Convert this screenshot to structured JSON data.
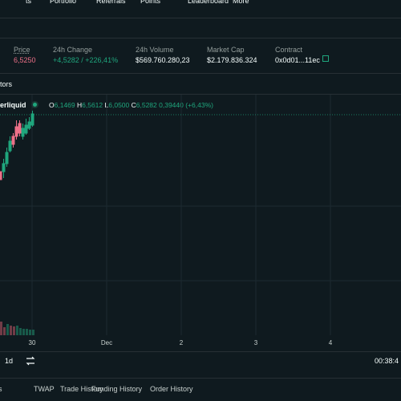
{
  "nav": {
    "items": [
      "ts",
      "Portfolio",
      "Referrals",
      "Points",
      "Leaderboard",
      "More"
    ]
  },
  "stats": [
    {
      "label": "Price",
      "value": "6,5250"
    },
    {
      "label": "24h Change",
      "value": "+4,5282 / +226,41%"
    },
    {
      "label": "24h Volume",
      "value": "$569.760.280,23"
    },
    {
      "label": "Market Cap",
      "value": "$2.179.836.324"
    },
    {
      "label": "Contract",
      "value": "0x0d01...11ec"
    }
  ],
  "toolbar": {
    "indicators": "tors"
  },
  "legend": {
    "name": "erliquid",
    "open_label": "O",
    "open": "6,1469",
    "high_label": "H",
    "high": "6,5612",
    "low_label": "L",
    "low": "6,0500",
    "close_label": "C",
    "close": "6,5282",
    "change": "0,39440 (+6,43%)"
  },
  "x_axis": [
    "30",
    "Dec",
    "2",
    "3",
    "4"
  ],
  "bottom_bar": {
    "interval": "1d",
    "clock": "00:38:4"
  },
  "tabs": [
    "s",
    "TWAP",
    "Trade History",
    "Funding History",
    "Order History"
  ]
}
